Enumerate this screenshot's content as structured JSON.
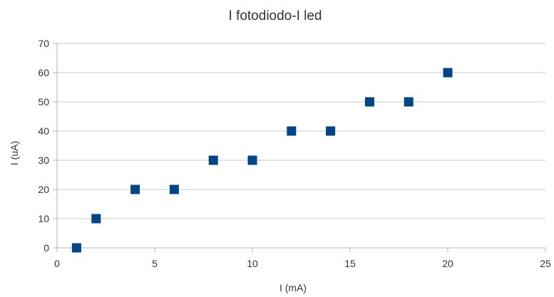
{
  "chart_data": {
    "type": "scatter",
    "title": "I fotodiodo-I led",
    "xlabel": "I (mA)",
    "ylabel": "I (uA)",
    "xlim": [
      0,
      25
    ],
    "ylim": [
      0,
      70
    ],
    "xticks": [
      0,
      5,
      10,
      15,
      20,
      25
    ],
    "yticks": [
      0,
      10,
      20,
      30,
      40,
      50,
      60,
      70
    ],
    "grid": "horizontal",
    "legend": "none",
    "marker": "square",
    "color": "#004586",
    "series": [
      {
        "x": [
          1,
          2,
          4,
          6,
          8,
          10,
          12,
          14,
          16,
          18,
          20
        ],
        "y": [
          0,
          10,
          20,
          20,
          30,
          30,
          40,
          40,
          50,
          50,
          60
        ]
      }
    ]
  }
}
